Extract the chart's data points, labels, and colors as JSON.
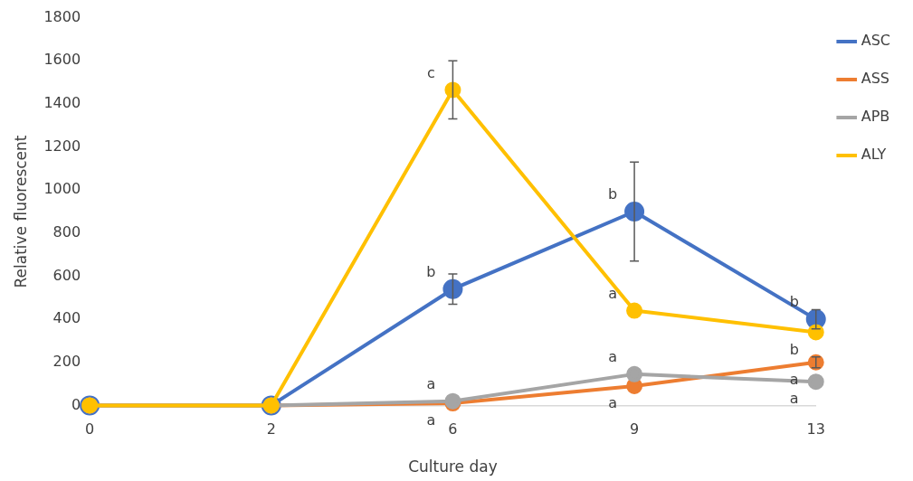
{
  "chart_data": {
    "type": "line",
    "xlabel": "Culture day",
    "ylabel": "Relative fluorescent",
    "categories": [
      "0",
      "2",
      "6",
      "9",
      "13"
    ],
    "series": [
      {
        "name": "ASC",
        "color": "#4472c4",
        "values": [
          0,
          0,
          540,
          900,
          400
        ],
        "errors": [
          null,
          null,
          70,
          230,
          45
        ]
      },
      {
        "name": "ASS",
        "color": "#ed7d31",
        "values": [
          0,
          0,
          10,
          90,
          200
        ],
        "errors": [
          null,
          null,
          null,
          null,
          25
        ]
      },
      {
        "name": "APB",
        "color": "#a5a5a5",
        "values": [
          0,
          0,
          20,
          145,
          110
        ]
      },
      {
        "name": "ALY",
        "color": "#ffc000",
        "values": [
          0,
          0,
          1465,
          440,
          340
        ],
        "errors": [
          null,
          null,
          135,
          null,
          null
        ]
      }
    ],
    "ylim": [
      0,
      1800
    ],
    "yticks": [
      0,
      200,
      400,
      600,
      800,
      1000,
      1200,
      1400,
      1600,
      1800
    ],
    "grid": false,
    "legend": "top right",
    "marker": "circle",
    "annotations": [
      {
        "text": "c",
        "x": "6",
        "y": 1465
      },
      {
        "text": "b",
        "x": "6",
        "y": 540
      },
      {
        "text": "a",
        "x": "6",
        "y": 20
      },
      {
        "text": "a",
        "x": "6",
        "y": 10
      },
      {
        "text": "b",
        "x": "9",
        "y": 900
      },
      {
        "text": "a",
        "x": "9",
        "y": 440
      },
      {
        "text": "a",
        "x": "9",
        "y": 145
      },
      {
        "text": "a",
        "x": "9",
        "y": 90
      },
      {
        "text": "b",
        "x": "13",
        "y": 400
      },
      {
        "text": "b",
        "x": "13",
        "y": 340
      },
      {
        "text": "a",
        "x": "13",
        "y": 200
      },
      {
        "text": "a",
        "x": "13",
        "y": 110
      }
    ]
  }
}
